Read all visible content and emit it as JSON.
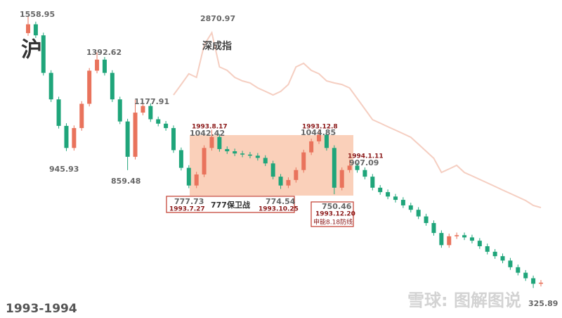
{
  "chart_data": {
    "type": "candlestick",
    "name": "沪",
    "up_color": "#e9735c",
    "down_color": "#1fa57a",
    "ylim": [
      190,
      1630
    ],
    "open": [
      1480,
      1520,
      1470,
      1300,
      1180,
      1060,
      960,
      1050,
      1160,
      1310,
      1360,
      1300,
      1180,
      1080,
      920,
      1120,
      1150,
      1090,
      1070,
      1050,
      950,
      870,
      790,
      840,
      960,
      1010,
      955,
      945,
      935,
      930,
      925,
      915,
      890,
      830,
      790,
      815,
      860,
      940,
      990,
      1020,
      960,
      780,
      860,
      880,
      860,
      830,
      780,
      760,
      740,
      725,
      700,
      680,
      650,
      620,
      575,
      520,
      560,
      565,
      555,
      540,
      515,
      490,
      470,
      450,
      420,
      395,
      370,
      345
    ],
    "high": [
      1558.95,
      1532,
      1482,
      1312,
      1192,
      1072,
      1062,
      1172,
      1322,
      1392.62,
      1372,
      1312,
      1192,
      1092,
      1177.91,
      1162,
      1162,
      1102,
      1082,
      1062,
      962,
      882,
      852,
      972,
      1042.42,
      1022,
      967,
      957,
      947,
      942,
      937,
      927,
      902,
      842,
      827,
      872,
      952,
      1002,
      1044.85,
      1032,
      972,
      872,
      907.09,
      892,
      872,
      842,
      792,
      772,
      752,
      737,
      712,
      692,
      662,
      632,
      587,
      572,
      577,
      577,
      567,
      552,
      527,
      502,
      482,
      462,
      432,
      407,
      382,
      362
    ],
    "low": [
      1468,
      1458,
      1288,
      1168,
      1048,
      945.93,
      948,
      1038,
      1148,
      1298,
      1288,
      1168,
      1068,
      859.48,
      908,
      1108,
      1078,
      1058,
      1038,
      938,
      858,
      777.73,
      778,
      828,
      948,
      943,
      933,
      923,
      918,
      913,
      903,
      878,
      818,
      774.54,
      778,
      803,
      848,
      928,
      978,
      948,
      750.46,
      768,
      848,
      848,
      818,
      768,
      748,
      728,
      713,
      688,
      668,
      638,
      608,
      563,
      508,
      508,
      548,
      543,
      528,
      503,
      478,
      458,
      438,
      408,
      383,
      358,
      325.89,
      333
    ],
    "close": [
      1520,
      1470,
      1300,
      1180,
      1060,
      960,
      1050,
      1160,
      1310,
      1360,
      1300,
      1180,
      1080,
      920,
      1120,
      1150,
      1090,
      1070,
      1050,
      950,
      870,
      790,
      840,
      960,
      1010,
      955,
      945,
      935,
      930,
      925,
      915,
      890,
      830,
      790,
      815,
      860,
      940,
      990,
      1020,
      960,
      780,
      860,
      880,
      860,
      830,
      780,
      760,
      740,
      725,
      700,
      680,
      650,
      620,
      575,
      520,
      560,
      565,
      555,
      540,
      515,
      490,
      470,
      450,
      420,
      395,
      370,
      345,
      350
    ],
    "overlay": {
      "name": "深成指",
      "color": "#f2c2b2",
      "axis": "y2",
      "values": [
        null,
        null,
        null,
        null,
        null,
        null,
        null,
        null,
        null,
        null,
        null,
        null,
        null,
        null,
        null,
        null,
        null,
        null,
        null,
        2244,
        2350,
        2457,
        2421,
        2747,
        2870.97,
        2527,
        2492,
        2421,
        2386,
        2365,
        2315,
        2280,
        2244,
        2280,
        2350,
        2527,
        2563,
        2492,
        2457,
        2386,
        2365,
        2350,
        2315,
        2209,
        2103,
        1996,
        1961,
        1925,
        1890,
        1855,
        1819,
        1749,
        1678,
        1607,
        1465,
        1500,
        1536,
        1465,
        1430,
        1395,
        1359,
        1324,
        1288,
        1253,
        1218,
        1182,
        1133,
        1111
      ]
    },
    "y2lim": [
      0,
      3200
    ],
    "annotations": [
      "1993.8.17",
      "1993.12.8",
      "1994.1.11",
      "1993.7.27",
      "777保卫战",
      "1993.10.25",
      "1993.12.20",
      "申能8.18防线"
    ],
    "footer": "1993-1994",
    "watermark": "雪球: 图解图说"
  }
}
